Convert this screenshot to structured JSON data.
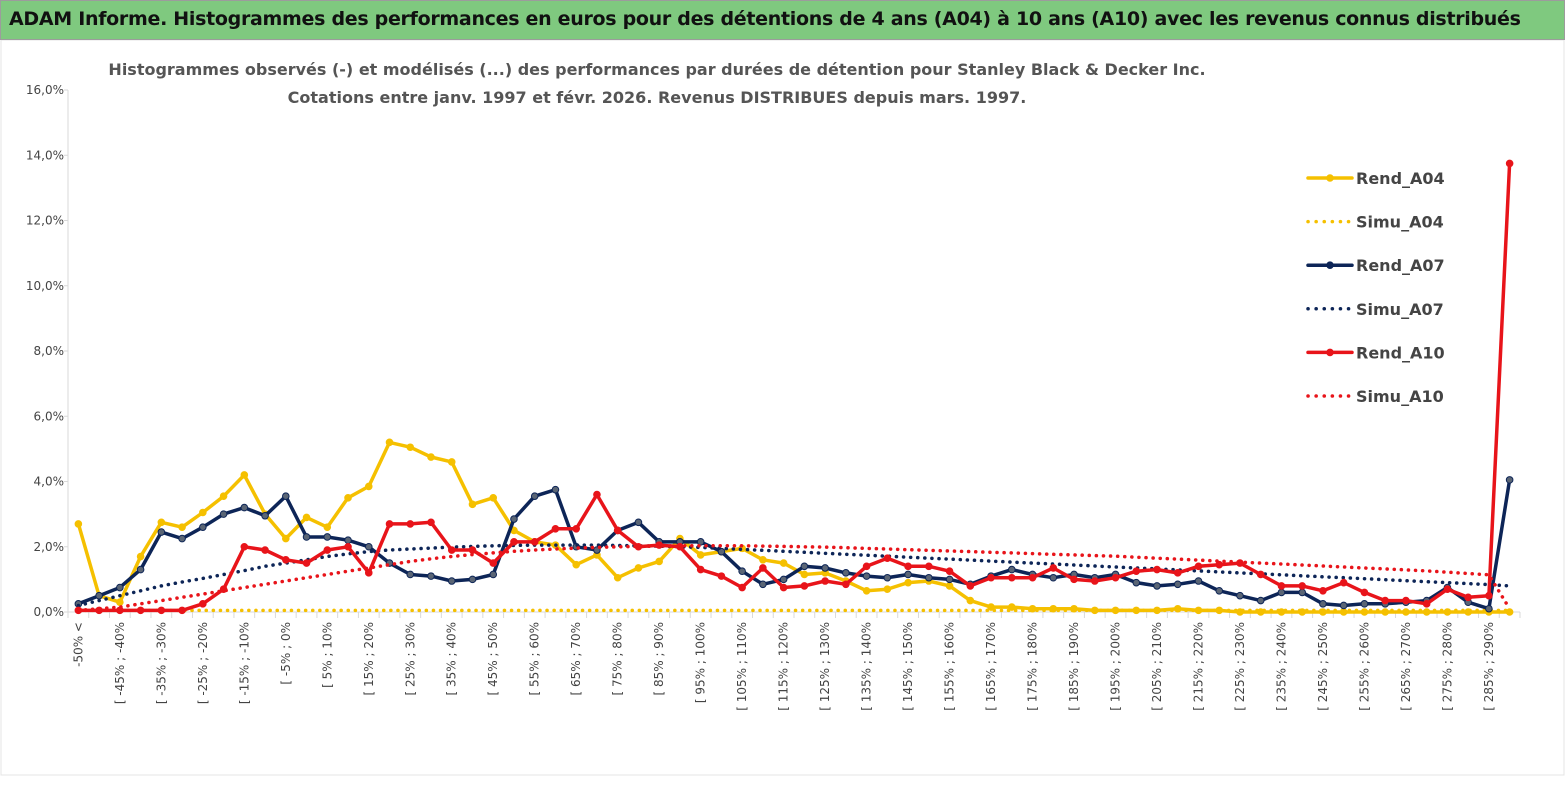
{
  "header": {
    "title": "ADAM Informe. Histogrammes des performances en euros pour des détentions de 4 ans (A04) à 10 ans (A10) avec les revenus connus distribués"
  },
  "chart_data": {
    "type": "line",
    "title": "Histogrammes observés (-) et modélisés (...) des performances par durées de détention pour Stanley Black & Decker Inc.",
    "subtitle": "Cotations entre janv. 1997 et févr. 2026. Revenus DISTRIBUES depuis mars. 1997.",
    "categories": [
      "-50% <",
      null,
      "[ -45% ; -40%",
      null,
      "[ -35% ; -30%",
      null,
      "[ -25% ; -20%",
      null,
      "[ -15% ; -10%",
      null,
      "[ -5% ; 0%",
      null,
      "[ 5% ; 10%",
      null,
      "[ 15% ; 20%",
      null,
      "[ 25% ; 30%",
      null,
      "[ 35% ; 40%",
      null,
      "[ 45% ; 50%",
      null,
      "[ 55% ; 60%",
      null,
      "[ 65% ; 70%",
      null,
      "[ 75% ; 80%",
      null,
      "[ 85% ; 90%",
      null,
      "[ 95% ; 100%",
      null,
      "[ 105% ; 110%",
      null,
      "[ 115% ; 120%",
      null,
      "[ 125% ; 130%",
      null,
      "[ 135% ; 140%",
      null,
      "[ 145% ; 150%",
      null,
      "[ 155% ; 160%",
      null,
      "[ 165% ; 170%",
      null,
      "[ 175% ; 180%",
      null,
      "[ 185% ; 190%",
      null,
      "[ 195% ; 200%",
      null,
      "[ 205% ; 210%",
      null,
      "[ 215% ; 220%",
      null,
      "[ 225% ; 230%",
      null,
      "[ 235% ; 240%",
      null,
      "[ 245% ; 250%",
      null,
      "[ 255% ; 260%",
      null,
      "[ 265% ; 270%",
      null,
      "[ 275% ; 280%",
      null,
      "[ 285% ; 290%",
      null
    ],
    "ylim": [
      0,
      16
    ],
    "yticks": [
      {
        "value": 0,
        "label": "0,0%"
      },
      {
        "value": 2,
        "label": "2,0%"
      },
      {
        "value": 4,
        "label": "4,0%"
      },
      {
        "value": 6,
        "label": "6,0%"
      },
      {
        "value": 8,
        "label": "8,0%"
      },
      {
        "value": 10,
        "label": "10,0%"
      },
      {
        "value": 12,
        "label": "12,0%"
      },
      {
        "value": 14,
        "label": "14,0%"
      },
      {
        "value": 16,
        "label": "16,0%"
      }
    ],
    "legend": "right",
    "series": [
      {
        "name": "Rend_A04",
        "color": "#f5c000",
        "line_style": "solid",
        "values": [
          2.7,
          0.5,
          0.3,
          1.7,
          2.75,
          2.6,
          3.05,
          3.55,
          4.2,
          3.0,
          2.25,
          2.9,
          2.6,
          3.5,
          3.85,
          5.2,
          5.05,
          4.75,
          4.6,
          3.3,
          3.5,
          2.5,
          2.15,
          2.05,
          1.45,
          1.75,
          1.05,
          1.35,
          1.55,
          2.25,
          1.75,
          1.85,
          1.95,
          1.6,
          1.5,
          1.15,
          1.2,
          0.95,
          0.65,
          0.7,
          0.9,
          0.95,
          0.8,
          0.35,
          0.15,
          0.15,
          0.1,
          0.1,
          0.1,
          0.05,
          0.05,
          0.05,
          0.05,
          0.1,
          0.05,
          0.05,
          0,
          0,
          0,
          0,
          0,
          0,
          0,
          0,
          0,
          0,
          0,
          0,
          0,
          0
        ]
      },
      {
        "name": "Simu_A04",
        "color": "#f5c000",
        "line_style": "dotted",
        "values": [
          0.05,
          0.05,
          0.05,
          0.05,
          0.05,
          0.05,
          0.05,
          0.05,
          0.05,
          0.05,
          0.05,
          0.05,
          0.05,
          0.05,
          0.05,
          0.05,
          0.05,
          0.05,
          0.05,
          0.05,
          0.05,
          0.05,
          0.05,
          0.05,
          0.05,
          0.05,
          0.05,
          0.05,
          0.05,
          0.05,
          0.05,
          0.05,
          0.05,
          0.05,
          0.05,
          0.05,
          0.05,
          0.05,
          0.05,
          0.05,
          0.05,
          0.05,
          0.05,
          0.05,
          0.05,
          0.05,
          0.05,
          0.05,
          0.05,
          0.05,
          0.05,
          0.05,
          0.05,
          0.05,
          0.05,
          0.05,
          0.05,
          0.05,
          0.05,
          0.05,
          0.05,
          0.05,
          0.05,
          0.05,
          0.05,
          0.05,
          0.05,
          0.05,
          0.05,
          0.05
        ]
      },
      {
        "name": "Rend_A07",
        "color": "#0d2557",
        "line_style": "solid",
        "values": [
          0.25,
          0.5,
          0.75,
          1.3,
          2.45,
          2.25,
          2.6,
          3.0,
          3.2,
          2.95,
          3.55,
          2.3,
          2.3,
          2.2,
          2.0,
          1.5,
          1.15,
          1.1,
          0.95,
          1.0,
          1.15,
          2.85,
          3.55,
          3.75,
          2.0,
          1.9,
          2.5,
          2.75,
          2.15,
          2.15,
          2.15,
          1.85,
          1.25,
          0.85,
          1.0,
          1.4,
          1.35,
          1.2,
          1.1,
          1.05,
          1.15,
          1.05,
          1.0,
          0.85,
          1.1,
          1.3,
          1.15,
          1.05,
          1.15,
          1.05,
          1.15,
          0.9,
          0.8,
          0.85,
          0.95,
          0.65,
          0.5,
          0.35,
          0.6,
          0.6,
          0.25,
          0.2,
          0.25,
          0.25,
          0.3,
          0.35,
          0.75,
          0.3,
          0.1,
          4.05
        ]
      },
      {
        "name": "Simu_A07",
        "color": "#0d2557",
        "line_style": "dotted",
        "values": [
          0.2,
          0.35,
          0.5,
          0.65,
          0.8,
          0.92,
          1.03,
          1.15,
          1.27,
          1.4,
          1.5,
          1.6,
          1.7,
          1.78,
          1.85,
          1.9,
          1.93,
          1.96,
          1.99,
          2.01,
          2.03,
          2.04,
          2.05,
          2.05,
          2.05,
          2.05,
          2.04,
          2.03,
          2.02,
          2.0,
          1.98,
          1.95,
          1.92,
          1.89,
          1.86,
          1.83,
          1.8,
          1.77,
          1.74,
          1.71,
          1.68,
          1.65,
          1.62,
          1.59,
          1.56,
          1.53,
          1.5,
          1.47,
          1.44,
          1.41,
          1.38,
          1.35,
          1.32,
          1.29,
          1.26,
          1.23,
          1.2,
          1.17,
          1.14,
          1.11,
          1.08,
          1.05,
          1.02,
          0.99,
          0.96,
          0.93,
          0.9,
          0.87,
          0.84,
          0.8
        ]
      },
      {
        "name": "Rend_A10",
        "color": "#e8141a",
        "line_style": "solid",
        "values": [
          0.05,
          0.05,
          0.05,
          0.05,
          0.05,
          0.05,
          0.25,
          0.7,
          2.0,
          1.9,
          1.6,
          1.5,
          1.9,
          2.0,
          1.2,
          2.7,
          2.7,
          2.75,
          1.9,
          1.9,
          1.5,
          2.15,
          2.15,
          2.55,
          2.55,
          3.6,
          2.5,
          2.0,
          2.05,
          2.0,
          1.3,
          1.1,
          0.75,
          1.35,
          0.75,
          0.8,
          0.95,
          0.85,
          1.4,
          1.65,
          1.4,
          1.4,
          1.25,
          0.8,
          1.05,
          1.05,
          1.05,
          1.35,
          1.0,
          0.95,
          1.05,
          1.25,
          1.3,
          1.2,
          1.4,
          1.45,
          1.5,
          1.15,
          0.8,
          0.8,
          0.65,
          0.9,
          0.6,
          0.35,
          0.35,
          0.25,
          0.7,
          0.45,
          0.5,
          13.75
        ]
      },
      {
        "name": "Simu_A10",
        "color": "#e8141a",
        "line_style": "dotted",
        "values": [
          0.05,
          0.1,
          0.15,
          0.25,
          0.35,
          0.45,
          0.55,
          0.65,
          0.75,
          0.85,
          0.95,
          1.05,
          1.15,
          1.25,
          1.35,
          1.45,
          1.55,
          1.63,
          1.7,
          1.76,
          1.81,
          1.86,
          1.9,
          1.93,
          1.96,
          1.98,
          2.0,
          2.01,
          2.02,
          2.03,
          2.03,
          2.03,
          2.03,
          2.02,
          2.01,
          2.0,
          1.99,
          1.97,
          1.95,
          1.93,
          1.91,
          1.89,
          1.87,
          1.85,
          1.83,
          1.81,
          1.79,
          1.77,
          1.75,
          1.73,
          1.71,
          1.68,
          1.65,
          1.62,
          1.59,
          1.56,
          1.53,
          1.5,
          1.47,
          1.44,
          1.41,
          1.38,
          1.35,
          1.32,
          1.29,
          1.26,
          1.22,
          1.18,
          1.14,
          0.1
        ]
      }
    ]
  }
}
